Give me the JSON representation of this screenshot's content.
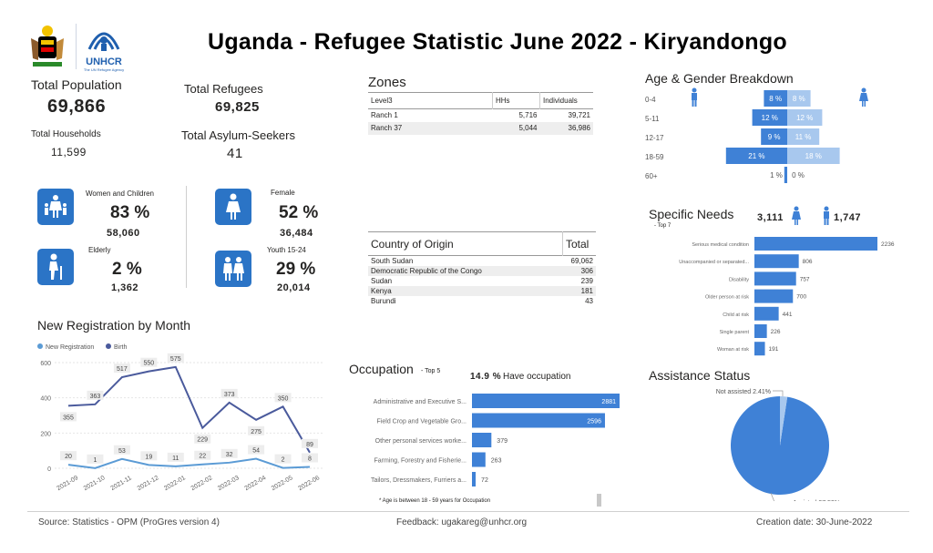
{
  "title": "Uganda - Refugee Statistic June 2022 - Kiryandongo",
  "logos": {
    "unhcr_text": "UNHCR",
    "unhcr_sub": "The UN Refugee Agency"
  },
  "kpis": {
    "total_population_label": "Total Population",
    "total_population": "69,866",
    "total_refugees_label": "Total Refugees",
    "total_refugees": "69,825",
    "total_households_label": "Total Households",
    "total_households": "11,599",
    "asylum_seekers_label": "Total Asylum-Seekers",
    "asylum_seekers": "41"
  },
  "demographics": {
    "women_children_label": "Women and Children",
    "women_children_pct": "83 %",
    "women_children_count": "58,060",
    "female_label": "Female",
    "female_pct": "52 %",
    "female_count": "36,484",
    "elderly_label": "Elderly",
    "elderly_pct": "2 %",
    "elderly_count": "1,362",
    "youth_label": "Youth 15-24",
    "youth_pct": "29 %",
    "youth_count": "20,014"
  },
  "zones": {
    "title": "Zones",
    "headers": [
      "Level3",
      "HHs",
      "Individuals"
    ],
    "rows": [
      [
        "Ranch 1",
        "5,716",
        "39,721"
      ],
      [
        "Ranch 37",
        "5,044",
        "36,986"
      ]
    ]
  },
  "origin": {
    "headers": [
      "Country of Origin",
      "Total"
    ],
    "rows": [
      [
        "South Sudan",
        "69,062"
      ],
      [
        "Democratic Republic of the Congo",
        "306"
      ],
      [
        "Sudan",
        "239"
      ],
      [
        "Kenya",
        "181"
      ],
      [
        "Burundi",
        "43"
      ]
    ]
  },
  "age_gender": {
    "title": "Age & Gender Breakdown",
    "groups": [
      "0-4",
      "5-11",
      "12-17",
      "18-59",
      "60+"
    ],
    "male_pct": [
      8,
      12,
      9,
      21,
      1
    ],
    "female_pct": [
      8,
      12,
      11,
      18,
      0
    ],
    "male_labels": [
      "8 %",
      "12 %",
      "9 %",
      "21 %",
      "1 %"
    ],
    "female_labels": [
      "8 %",
      "12 %",
      "11 %",
      "18 %",
      "0 %"
    ],
    "colors": {
      "male": "#3f81d6",
      "female": "#a8c8ee"
    }
  },
  "specific_needs": {
    "title": "Specific Needs",
    "subtitle": "- Top 7",
    "female_total": "3,111",
    "male_total": "1,747",
    "categories": [
      "Serious medical condition",
      "Unaccompanied or separated...",
      "Disability",
      "Older person at risk",
      "Child at risk",
      "Single parent",
      "Woman at risk"
    ],
    "values": [
      2236,
      806,
      757,
      700,
      441,
      226,
      191
    ],
    "value_labels": [
      "2236",
      "806",
      "757",
      "700",
      "441",
      "226",
      "191"
    ]
  },
  "occupation": {
    "title": "Occupation",
    "subtitle": "- Top 5",
    "have_pct": "14.9 %",
    "have_label": "Have occupation",
    "categories": [
      "Administrative and Executive S...",
      "Field Crop and Vegetable Gro...",
      "Other personal services worke...",
      "Farming, Forestry and Fisherie...",
      "Tailors, Dressmakers, Furriers a..."
    ],
    "values": [
      2881,
      2596,
      379,
      263,
      72
    ],
    "value_labels": [
      "2881",
      "2596",
      "379",
      "263",
      "72"
    ],
    "note": "* Age is between 18 - 59 years for Occupation"
  },
  "assistance": {
    "title": "Assistance Status",
    "not_assisted_label": "Not assisted 2.41%",
    "assisted_label": "Assisted 97.59%",
    "not_assisted_pct": 2.41,
    "assisted_pct": 97.59,
    "colors": {
      "assisted": "#3f81d6",
      "not_assisted": "#a8c8ee"
    }
  },
  "chart_data": {
    "type": "line",
    "title": "New Registration by Month",
    "x": [
      "2021-09",
      "2021-10",
      "2021-11",
      "2021-12",
      "2022-01",
      "2022-02",
      "2022-03",
      "2022-04",
      "2022-05",
      "2022-06"
    ],
    "series": [
      {
        "name": "New Registration",
        "values": [
          20,
          1,
          53,
          19,
          11,
          22,
          32,
          54,
          2,
          8
        ],
        "labels": [
          "20",
          "1",
          "53",
          "19",
          "11",
          "22",
          "32",
          "54",
          "2",
          "8"
        ],
        "color": "#5b9bd5"
      },
      {
        "name": "Birth",
        "values": [
          355,
          363,
          517,
          550,
          575,
          229,
          373,
          275,
          350,
          89
        ],
        "labels": [
          "355",
          "363",
          "517",
          "550",
          "575",
          "229",
          "373",
          "275",
          "350",
          "89"
        ],
        "color": "#4a5a9c"
      }
    ],
    "yticks": [
      "600",
      "400",
      "200",
      "0"
    ],
    "ylim": [
      0,
      600
    ],
    "legend": "top-left"
  },
  "footer": {
    "source": "Source: Statistics - OPM (ProGres version 4)",
    "feedback": "Feedback: ugakareg@unhcr.org",
    "creation": "Creation date: 30-June-2022"
  }
}
